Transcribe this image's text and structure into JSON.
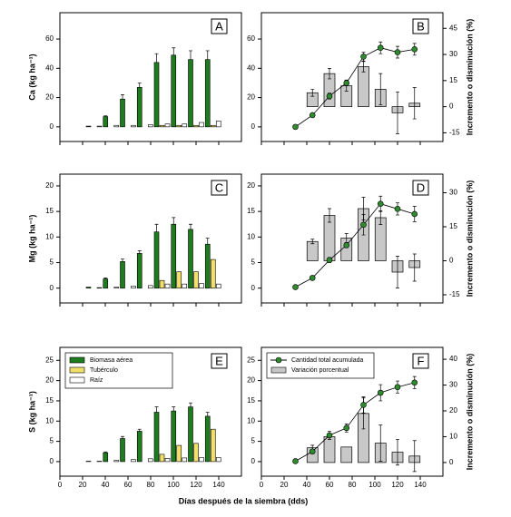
{
  "x_label": "Días después de la siembra (dds)",
  "chart_data": [
    {
      "type": "bar",
      "label": "A",
      "ylabel": "Ca (kg ha⁻¹)",
      "x": [
        30,
        45,
        60,
        75,
        90,
        105,
        120,
        135
      ],
      "series": [
        {
          "color": "#1e7b1e",
          "values": [
            0.5,
            7,
            19,
            27,
            44,
            49,
            46,
            46
          ],
          "errors": [
            0,
            0.5,
            3,
            3,
            6,
            5,
            6,
            6
          ]
        },
        {
          "color": "#f2e06a",
          "values": [
            0,
            0,
            0,
            0,
            1,
            1,
            1,
            1
          ]
        },
        {
          "color": "#ffffff",
          "values": [
            0.5,
            1,
            1,
            1.5,
            2,
            2,
            3,
            4
          ]
        }
      ],
      "xlim": [
        0,
        160
      ],
      "xticks": [
        0,
        20,
        40,
        60,
        80,
        100,
        120,
        140
      ],
      "xtick_labels": false,
      "ylim": [
        -10,
        78
      ],
      "yticks": [
        0,
        20,
        40,
        60
      ]
    },
    {
      "type": "combo",
      "label": "B",
      "y2label": "Incremento o disminución (%)",
      "x": [
        30,
        45,
        60,
        75,
        90,
        105,
        120,
        135
      ],
      "series": [
        {
          "color": "#2e8b2e",
          "values": [
            0,
            8,
            21,
            30,
            48,
            54,
            51,
            53
          ],
          "errors": [
            0,
            1,
            2,
            2,
            3,
            4,
            4,
            4
          ]
        },
        {
          "color": "#c8c8c8",
          "axis": "y2",
          "values": [
            null,
            8,
            19,
            12,
            23,
            10,
            -3.5,
            2
          ],
          "errors": [
            null,
            2,
            3,
            3,
            3,
            9,
            12,
            9
          ]
        }
      ],
      "xlim": [
        0,
        160
      ],
      "xticks": [
        0,
        20,
        40,
        60,
        80,
        100,
        120,
        140
      ],
      "xtick_labels": false,
      "ylim": [
        -10,
        78
      ],
      "yticks": [
        0,
        20,
        40,
        60
      ],
      "y2lim": [
        -20,
        54
      ],
      "y2ticks": [
        -15,
        0,
        15,
        30,
        45
      ]
    },
    {
      "type": "bar",
      "label": "C",
      "ylabel": "Mg (kg ha⁻¹)",
      "x": [
        30,
        45,
        60,
        75,
        90,
        105,
        120,
        135
      ],
      "series": [
        {
          "color": "#1e7b1e",
          "values": [
            0.2,
            1.8,
            5.2,
            6.8,
            11,
            12.5,
            11.5,
            8.6
          ],
          "errors": [
            0,
            0.2,
            0.5,
            0.5,
            1.5,
            1.3,
            1,
            1.2
          ]
        },
        {
          "color": "#f2e06a",
          "values": [
            0,
            0,
            0,
            0,
            1.5,
            3.2,
            3.2,
            5.6
          ]
        },
        {
          "color": "#ffffff",
          "values": [
            0.1,
            0.2,
            0.4,
            0.5,
            0.8,
            0.8,
            0.9,
            0.8
          ]
        }
      ],
      "xlim": [
        0,
        160
      ],
      "xticks": [
        0,
        20,
        40,
        60,
        80,
        100,
        120,
        140
      ],
      "xtick_labels": false,
      "ylim": [
        -2.9,
        22.3
      ],
      "yticks": [
        0,
        5,
        10,
        15,
        20
      ]
    },
    {
      "type": "combo",
      "label": "D",
      "y2label": "Incremento o disminución (%)",
      "x": [
        30,
        45,
        60,
        75,
        90,
        105,
        120,
        135
      ],
      "series": [
        {
          "color": "#2e8b2e",
          "values": [
            0.2,
            2,
            5.5,
            8.4,
            12.4,
            16.5,
            15.5,
            14.5
          ],
          "errors": [
            0,
            0.3,
            0.5,
            0.5,
            2,
            1.5,
            1.2,
            1.5
          ]
        },
        {
          "color": "#c8c8c8",
          "axis": "y2",
          "values": [
            null,
            8.5,
            20,
            10,
            23,
            19,
            -5,
            -3
          ],
          "errors": [
            null,
            1,
            3,
            2,
            5,
            3,
            7,
            6
          ]
        }
      ],
      "xlim": [
        0,
        160
      ],
      "xticks": [
        0,
        20,
        40,
        60,
        80,
        100,
        120,
        140
      ],
      "xtick_labels": false,
      "ylim": [
        -2.9,
        22.3
      ],
      "yticks": [
        0,
        5,
        10,
        15,
        20
      ],
      "y2lim": [
        -18.6,
        38.2
      ],
      "y2ticks": [
        -15,
        0,
        15,
        30
      ]
    },
    {
      "type": "bar",
      "label": "E",
      "ylabel": "S (kg ha⁻¹)",
      "x": [
        30,
        45,
        60,
        75,
        90,
        105,
        120,
        135
      ],
      "series": [
        {
          "name": "Biomasa aérea",
          "color": "#1e7b1e",
          "values": [
            0.1,
            2.2,
            5.7,
            7.5,
            12.2,
            12.5,
            13.5,
            11.2
          ],
          "errors": [
            0,
            0.2,
            0.5,
            0.5,
            1.3,
            1,
            1,
            1
          ]
        },
        {
          "name": "Tubérculo",
          "color": "#f2e06a",
          "values": [
            0,
            0,
            0,
            0,
            1.8,
            4,
            4.5,
            8
          ]
        },
        {
          "name": "Raíz",
          "color": "#ffffff",
          "values": [
            0.1,
            0.3,
            0.5,
            0.7,
            0.8,
            0.9,
            1,
            1
          ]
        }
      ],
      "xlim": [
        0,
        160
      ],
      "xticks": [
        0,
        20,
        40,
        60,
        80,
        100,
        120,
        140
      ],
      "xtick_labels": true,
      "ylim": [
        -3.6,
        28.2
      ],
      "yticks": [
        0,
        5,
        10,
        15,
        20,
        25
      ],
      "legend": "upper left"
    },
    {
      "type": "combo",
      "label": "F",
      "y2label": "Incremento o disminución (%)",
      "x": [
        30,
        45,
        60,
        75,
        90,
        105,
        120,
        135
      ],
      "series": [
        {
          "name": "Cantidad total acumulada",
          "color": "#2e8b2e",
          "values": [
            0.1,
            2.5,
            6.5,
            8.3,
            14,
            17,
            18.4,
            19.5
          ],
          "errors": [
            0,
            0.5,
            1,
            1,
            2,
            2,
            1.5,
            1.5
          ]
        },
        {
          "name": "Variación porcentual",
          "color": "#c8c8c8",
          "axis": "y2",
          "values": [
            null,
            5.7,
            10,
            6,
            19,
            7.5,
            4,
            2.5
          ],
          "errors": [
            null,
            1,
            1,
            0,
            6,
            7,
            5,
            6
          ]
        }
      ],
      "xlim": [
        0,
        160
      ],
      "xticks": [
        0,
        20,
        40,
        60,
        80,
        100,
        120,
        140
      ],
      "xtick_labels": true,
      "ylim": [
        -3.6,
        28.2
      ],
      "yticks": [
        0,
        5,
        10,
        15,
        20,
        25
      ],
      "y2lim": [
        -5.3,
        44.6
      ],
      "y2ticks": [
        0,
        10,
        20,
        30,
        40
      ],
      "legend": "upper left"
    }
  ]
}
